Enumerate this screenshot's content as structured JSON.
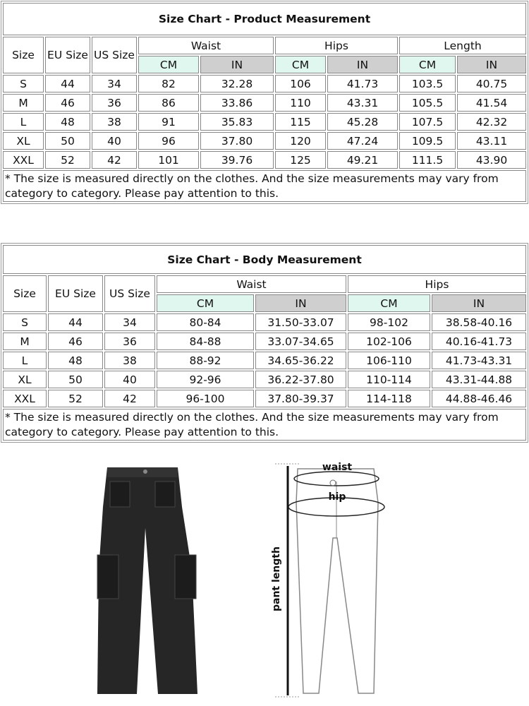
{
  "product": {
    "title": "Size Chart - Product Measurement",
    "headers": {
      "size": "Size",
      "eu": "EU Size",
      "us": "US Size",
      "waist": "Waist",
      "hips": "Hips",
      "length": "Length",
      "cm": "CM",
      "in": "IN"
    },
    "rows": [
      [
        "S",
        "44",
        "34",
        "82",
        "32.28",
        "106",
        "41.73",
        "103.5",
        "40.75"
      ],
      [
        "M",
        "46",
        "36",
        "86",
        "33.86",
        "110",
        "43.31",
        "105.5",
        "41.54"
      ],
      [
        "L",
        "48",
        "38",
        "91",
        "35.83",
        "115",
        "45.28",
        "107.5",
        "42.32"
      ],
      [
        "XL",
        "50",
        "40",
        "96",
        "37.80",
        "120",
        "47.24",
        "109.5",
        "43.11"
      ],
      [
        "XXL",
        "52",
        "42",
        "101",
        "39.76",
        "125",
        "49.21",
        "111.5",
        "43.90"
      ]
    ],
    "note": "* The size is measured directly on the clothes. And the size measurements may vary from category to category. Please pay attention to this."
  },
  "body": {
    "title": "Size Chart - Body Measurement",
    "headers": {
      "size": "Size",
      "eu": "EU Size",
      "us": "US Size",
      "waist": "Waist",
      "hips": "Hips",
      "cm": "CM",
      "in": "IN"
    },
    "rows": [
      [
        "S",
        "44",
        "34",
        "80-84",
        "31.50-33.07",
        "98-102",
        "38.58-40.16"
      ],
      [
        "M",
        "46",
        "36",
        "84-88",
        "33.07-34.65",
        "102-106",
        "40.16-41.73"
      ],
      [
        "L",
        "48",
        "38",
        "88-92",
        "34.65-36.22",
        "106-110",
        "41.73-43.31"
      ],
      [
        "XL",
        "50",
        "40",
        "92-96",
        "36.22-37.80",
        "110-114",
        "43.31-44.88"
      ],
      [
        "XXL",
        "52",
        "42",
        "96-100",
        "37.80-39.37",
        "114-118",
        "44.88-46.46"
      ]
    ],
    "note": "* The size is measured directly on the clothes. And the size measurements may vary from category to category. Please pay attention to this."
  },
  "diagram": {
    "waist": "waist",
    "hip": "hip",
    "length": "pant length"
  },
  "colors": {
    "cm_header": "#dff7ee",
    "in_header": "#cfcfcf"
  }
}
